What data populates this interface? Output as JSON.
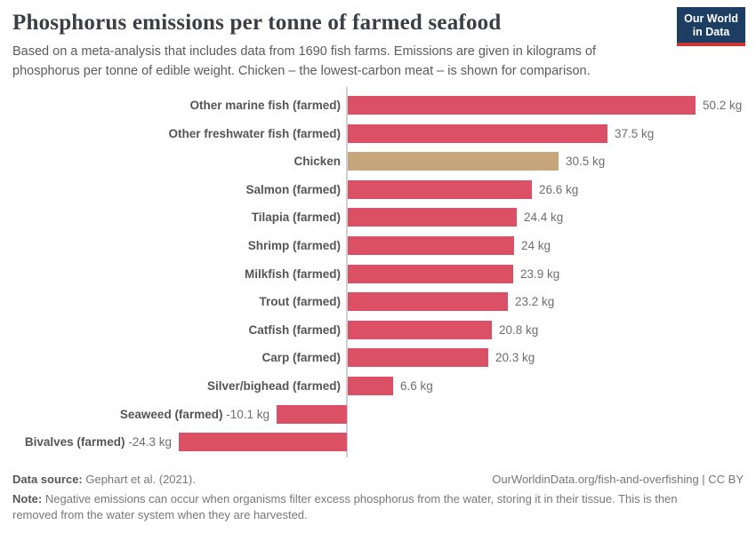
{
  "header": {
    "title": "Phosphorus emissions per tonne of farmed seafood",
    "subtitle": "Based on a meta-analysis that includes data from 1690 fish farms. Emissions are given in kilograms of phosphorus per tonne of edible weight. Chicken – the lowest-carbon meat – is shown for comparison.",
    "logo": {
      "line1": "Our World",
      "line2": "in Data",
      "bg_color": "#1d3d63",
      "stripe_color": "#cc3732"
    }
  },
  "chart_data": {
    "type": "bar",
    "orientation": "horizontal",
    "title": "Phosphorus emissions per tonne of farmed seafood",
    "unit": "kg",
    "categories": [
      "Other marine fish (farmed)",
      "Other freshwater fish (farmed)",
      "Chicken",
      "Salmon (farmed)",
      "Tilapia (farmed)",
      "Shrimp (farmed)",
      "Milkfish (farmed)",
      "Trout (farmed)",
      "Catfish (farmed)",
      "Carp (farmed)",
      "Silver/bighead (farmed)",
      "Seaweed (farmed)",
      "Bivalves (farmed)"
    ],
    "values": [
      50.2,
      37.5,
      30.5,
      26.6,
      24.4,
      24,
      23.9,
      23.2,
      20.8,
      20.3,
      6.6,
      -10.1,
      -24.3
    ],
    "value_labels": [
      "50.2 kg",
      "37.5 kg",
      "30.5 kg",
      "26.6 kg",
      "24.4 kg",
      "24 kg",
      "23.9 kg",
      "23.2 kg",
      "20.8 kg",
      "20.3 kg",
      "6.6 kg",
      "-10.1 kg",
      "-24.3 kg"
    ],
    "bar_color": "#dc5065",
    "highlight_index": 2,
    "highlight_color": "#c8a67c",
    "xlim": [
      -24.3,
      50.2
    ],
    "grid": false,
    "legend": "none",
    "zero_axis_color": "#d0d0d0"
  },
  "footer": {
    "source_label": "Data source:",
    "source_value": " Gephart et al. (2021).",
    "link": "OurWorldinData.org/fish-and-overfishing | CC BY",
    "note_label": "Note:",
    "note_text": " Negative emissions can occur when organisms filter excess phosphorus from the water, storing it in their tissue. This is then removed from the water system when they are harvested."
  }
}
